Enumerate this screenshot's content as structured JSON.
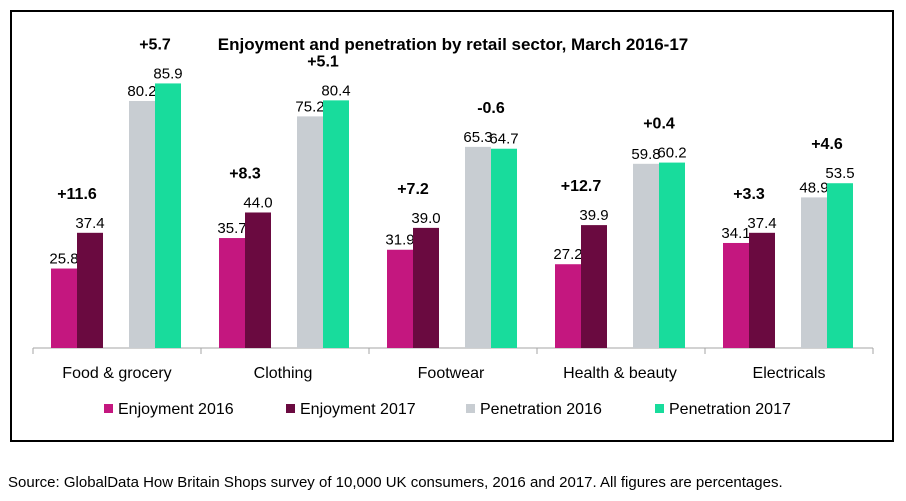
{
  "chart_data": {
    "type": "bar",
    "title": "Enjoyment and penetration by retail sector, March 2016-17",
    "categories": [
      "Food & grocery",
      "Clothing",
      "Footwear",
      "Health & beauty",
      "Electricals"
    ],
    "series": [
      {
        "name": "Enjoyment 2016",
        "values": [
          25.8,
          35.7,
          31.9,
          27.2,
          34.1
        ],
        "color": "#C4177F"
      },
      {
        "name": "Enjoyment 2017",
        "values": [
          37.4,
          44.0,
          39.0,
          39.9,
          37.4
        ],
        "color": "#6A0A40"
      },
      {
        "name": "Penetration 2016",
        "values": [
          80.2,
          75.2,
          65.3,
          59.8,
          48.9
        ],
        "color": "#C8CDD2"
      },
      {
        "name": "Penetration 2017",
        "values": [
          85.9,
          80.4,
          64.7,
          60.2,
          53.5
        ],
        "color": "#18DC9C"
      }
    ],
    "value_labels": [
      [
        "25.8",
        "35.7",
        "31.9",
        "27.2",
        "34.1"
      ],
      [
        "37.4",
        "44.0",
        "39.0",
        "39.9",
        "37.4"
      ],
      [
        "80.2",
        "75.2",
        "65.3",
        "59.8",
        "48.9"
      ],
      [
        "85.9",
        "80.4",
        "64.7",
        "60.2",
        "53.5"
      ]
    ],
    "enjoyment_change_labels": [
      "+11.6",
      "+8.3",
      "+7.2",
      "+12.7",
      "+3.3"
    ],
    "penetration_change_labels": [
      "+5.7",
      "+5.1",
      "-0.6",
      "+0.4",
      "+4.6"
    ],
    "ylim": [
      0,
      100
    ],
    "grid": false,
    "legend_position": "bottom",
    "xlabel": "",
    "ylabel": ""
  },
  "source_note": "Source: GlobalData How Britain Shops survey of 10,000 UK consumers, 2016 and 2017. All figures are percentages."
}
